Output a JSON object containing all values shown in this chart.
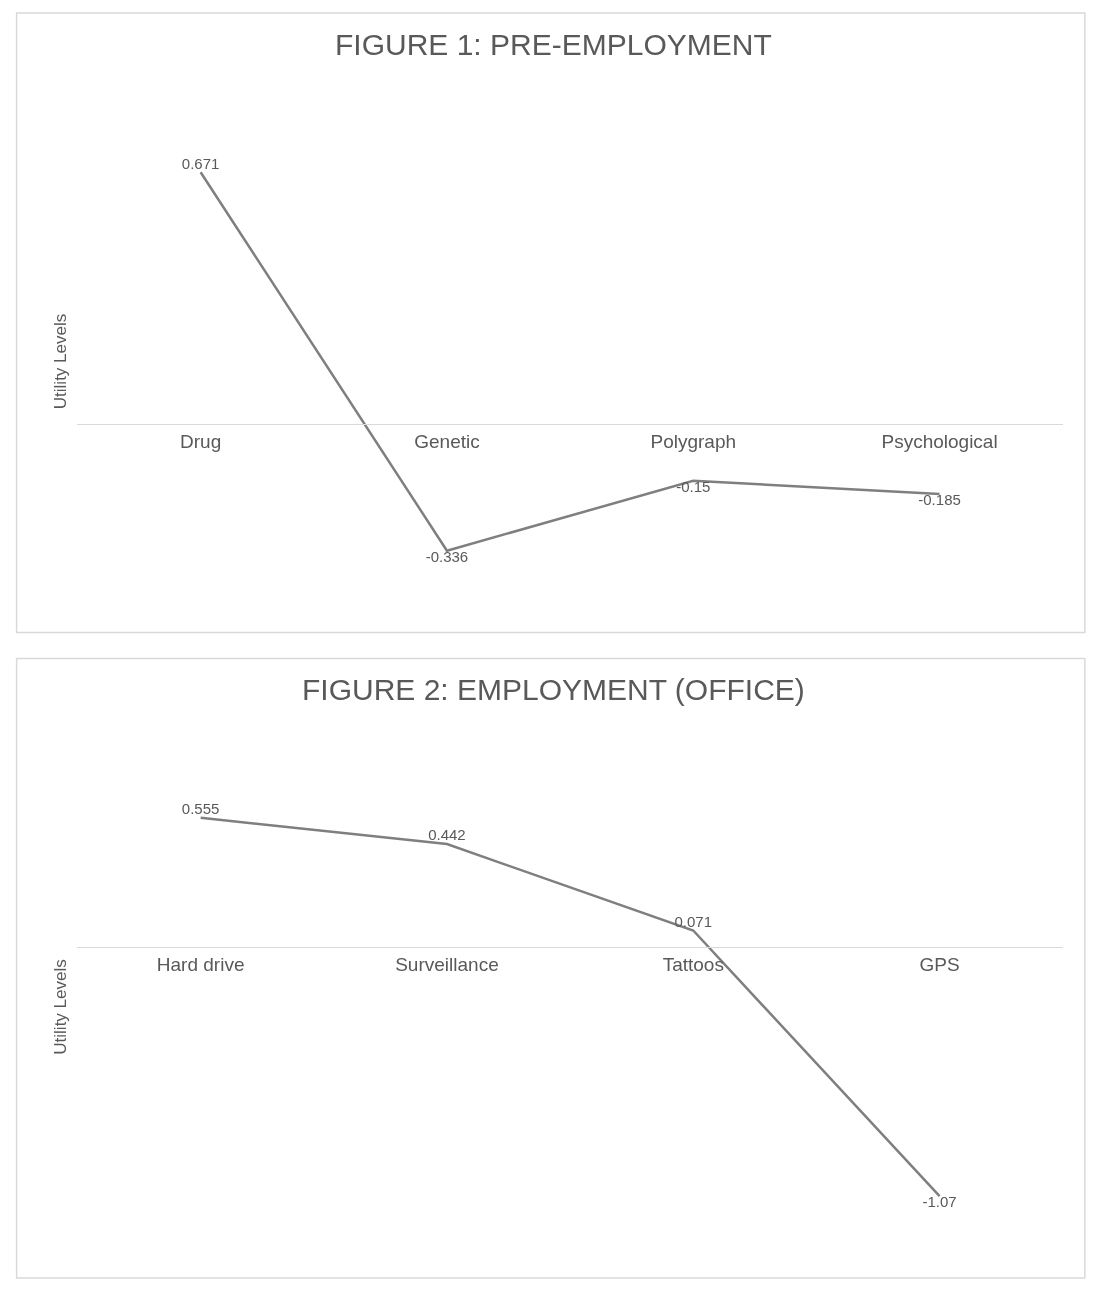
{
  "chart_data": [
    {
      "type": "line",
      "title": "FIGURE 1: PRE-EMPLOYMENT",
      "ylabel": "Utility Levels",
      "categories": [
        "Drug",
        "Genetic",
        "Polygraph",
        "Psychological"
      ],
      "series": [
        {
          "color": "#7f7f7f",
          "values": [
            0.671,
            -0.336,
            -0.15,
            -0.185
          ]
        }
      ],
      "data_labels": true,
      "tick_labels": "x",
      "marker": "none"
    },
    {
      "type": "line",
      "title": "FIGURE 2: EMPLOYMENT (OFFICE)",
      "ylabel": "Utility Levels",
      "categories": [
        "Hard drive",
        "Surveillance",
        "Tattoos",
        "GPS"
      ],
      "series": [
        {
          "color": "#7f7f7f",
          "values": [
            0.555,
            0.442,
            0.071,
            -1.07
          ]
        }
      ],
      "data_labels": true,
      "tick_labels": "x",
      "marker": "none"
    }
  ]
}
